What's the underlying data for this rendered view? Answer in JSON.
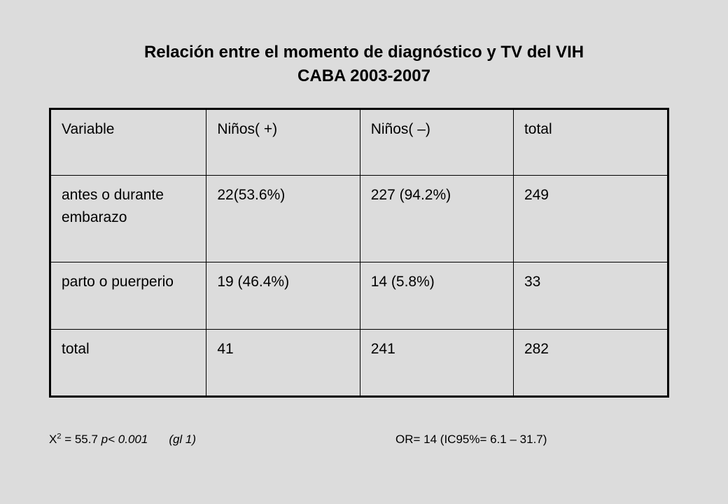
{
  "title": {
    "line1": "Relación entre el momento de diagnóstico y TV del VIH",
    "line2": "CABA 2003-2007"
  },
  "table": {
    "headers": [
      "Variable",
      "Niños( +)",
      "Niños( –)",
      "total"
    ],
    "rows": [
      [
        "antes o durante embarazo",
        "22(53.6%)",
        "227 (94.2%)",
        "249"
      ],
      [
        "parto o puerperio",
        "19 (46.4%)",
        "14 (5.8%)",
        "33"
      ],
      [
        "total",
        "41",
        "241",
        "282"
      ]
    ]
  },
  "footer": {
    "chi_symbol": "X",
    "chi_sup": "2",
    "chi_value": " = 55.7 ",
    "p_value": "p< 0.001",
    "gl": "(gl 1)",
    "or": "OR= 14  (IC95%= 6.1 – 31.7)"
  }
}
